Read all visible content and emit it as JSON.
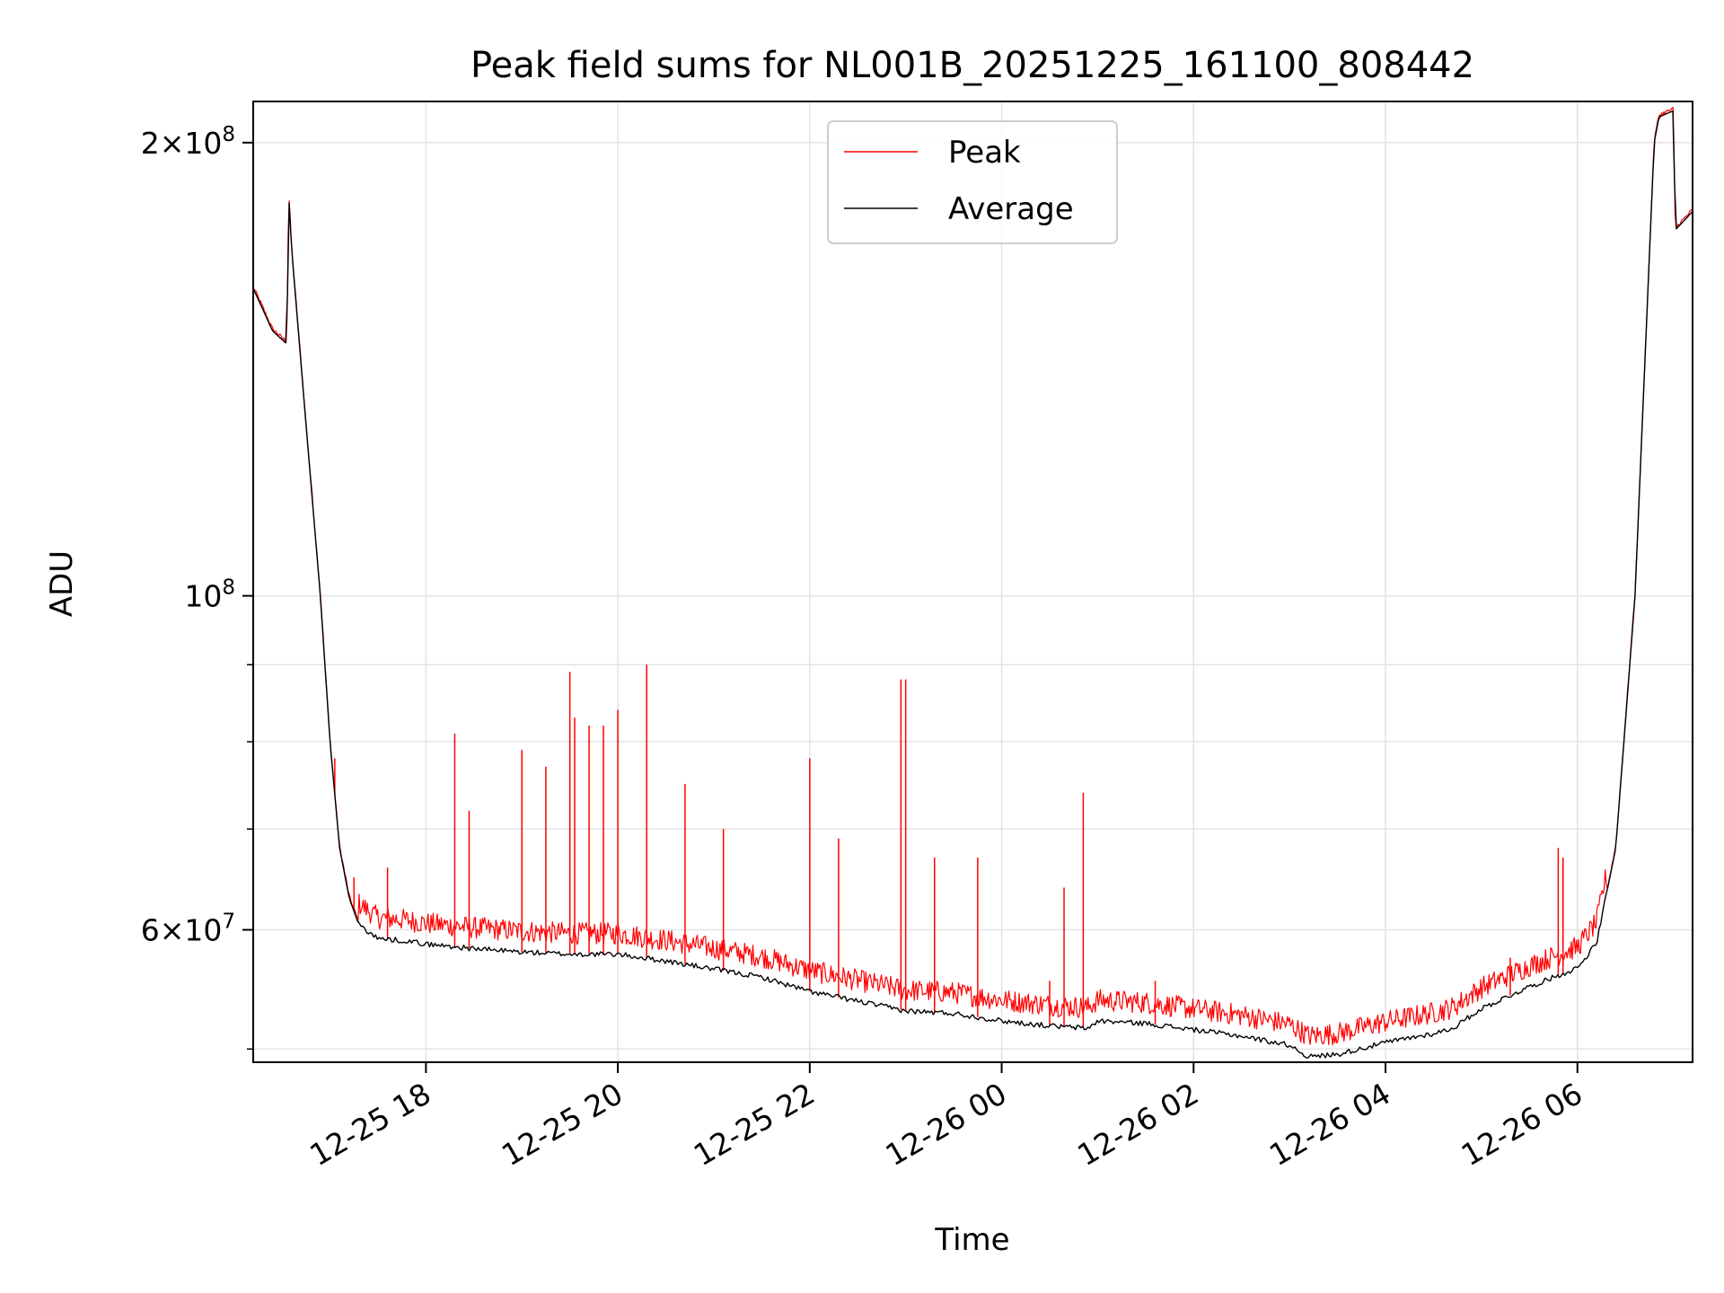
{
  "chart_data": {
    "type": "line",
    "title": "Peak field sums for NL001B_20251225_161100_808442",
    "xlabel": "Time",
    "ylabel": "ADU",
    "yscale": "log",
    "grid": true,
    "x_units": "hours since 2025-12-25 00:00",
    "xlim": [
      16.2,
      31.2
    ],
    "ylim": [
      49000000,
      213000000
    ],
    "x_ticks": [
      {
        "value": 18,
        "label": "12-25 18"
      },
      {
        "value": 20,
        "label": "12-25 20"
      },
      {
        "value": 22,
        "label": "12-25 22"
      },
      {
        "value": 24,
        "label": "12-26 00"
      },
      {
        "value": 26,
        "label": "12-26 02"
      },
      {
        "value": 28,
        "label": "12-26 04"
      },
      {
        "value": 30,
        "label": "12-26 06"
      }
    ],
    "y_ticks_labeled": [
      {
        "value": 60000000,
        "base": "6×10",
        "exp": "7"
      },
      {
        "value": 100000000,
        "base": "10",
        "exp": "8"
      },
      {
        "value": 200000000,
        "base": "2×10",
        "exp": "8"
      }
    ],
    "y_ticks_minor": [
      50000000,
      70000000,
      80000000,
      90000000
    ],
    "legend": {
      "position": "upper-center",
      "entries": [
        {
          "label": "Peak",
          "color": "#ff0000"
        },
        {
          "label": "Average",
          "color": "#000000"
        }
      ]
    },
    "series": [
      {
        "name": "Average",
        "color": "#000000",
        "x": [
          16.2,
          16.3,
          16.4,
          16.55,
          16.57,
          16.6,
          16.75,
          16.9,
          17.0,
          17.1,
          17.2,
          17.3,
          17.5,
          17.8,
          18.0,
          18.5,
          19.0,
          19.5,
          20.0,
          20.5,
          21.0,
          21.5,
          22.0,
          22.5,
          23.0,
          23.5,
          24.0,
          24.5,
          24.9,
          25.0,
          25.5,
          26.0,
          26.5,
          27.0,
          27.2,
          27.5,
          28.0,
          28.5,
          28.7,
          29.0,
          29.5,
          30.0,
          30.2,
          30.4,
          30.6,
          30.8,
          30.85,
          31.0,
          31.02,
          31.2
        ],
        "values": [
          160000000,
          155000000,
          150000000,
          147000000,
          185000000,
          170000000,
          130000000,
          100000000,
          80000000,
          68000000,
          63000000,
          60500000,
          59200000,
          59000000,
          58700000,
          58300000,
          58000000,
          57800000,
          57800000,
          57200000,
          56500000,
          55800000,
          54600000,
          53800000,
          53000000,
          52800000,
          52200000,
          51800000,
          51600000,
          52200000,
          52000000,
          51500000,
          51000000,
          50300000,
          49400000,
          49600000,
          50500000,
          51200000,
          51600000,
          53200000,
          55000000,
          56600000,
          58800000,
          68000000,
          100000000,
          200000000,
          208000000,
          210000000,
          175000000,
          180000000
        ]
      },
      {
        "name": "Peak",
        "color": "#ff0000",
        "spikes": [
          {
            "x": 17.05,
            "y": 78000000
          },
          {
            "x": 17.25,
            "y": 65000000
          },
          {
            "x": 17.6,
            "y": 66000000
          },
          {
            "x": 18.3,
            "y": 81000000
          },
          {
            "x": 18.45,
            "y": 72000000
          },
          {
            "x": 19.0,
            "y": 79000000
          },
          {
            "x": 19.25,
            "y": 77000000
          },
          {
            "x": 19.5,
            "y": 89000000
          },
          {
            "x": 19.55,
            "y": 83000000
          },
          {
            "x": 19.7,
            "y": 82000000
          },
          {
            "x": 19.85,
            "y": 82000000
          },
          {
            "x": 20.0,
            "y": 84000000
          },
          {
            "x": 20.3,
            "y": 90000000
          },
          {
            "x": 20.7,
            "y": 75000000
          },
          {
            "x": 21.1,
            "y": 70000000
          },
          {
            "x": 22.0,
            "y": 78000000
          },
          {
            "x": 22.3,
            "y": 69000000
          },
          {
            "x": 22.95,
            "y": 88000000
          },
          {
            "x": 23.0,
            "y": 88000000
          },
          {
            "x": 23.3,
            "y": 67000000
          },
          {
            "x": 23.75,
            "y": 67000000
          },
          {
            "x": 24.5,
            "y": 55500000
          },
          {
            "x": 24.65,
            "y": 64000000
          },
          {
            "x": 24.85,
            "y": 74000000
          },
          {
            "x": 25.6,
            "y": 55500000
          },
          {
            "x": 29.3,
            "y": 57500000
          },
          {
            "x": 29.8,
            "y": 68000000
          },
          {
            "x": 29.85,
            "y": 67000000
          }
        ]
      }
    ]
  }
}
